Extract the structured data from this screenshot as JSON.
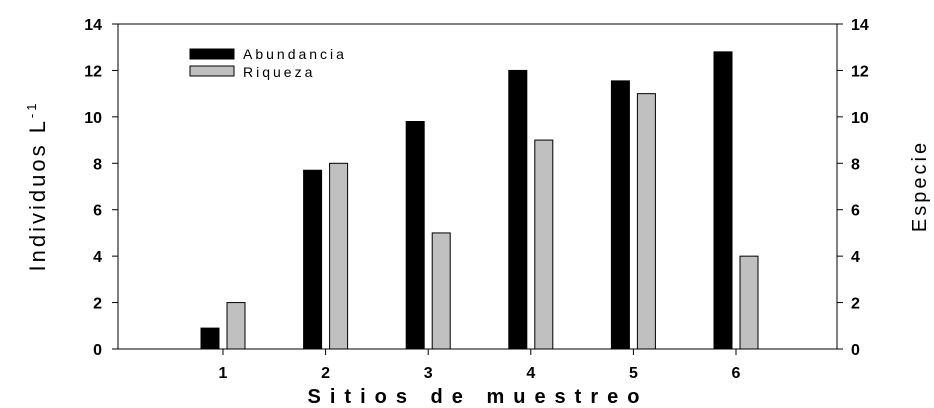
{
  "chart_data": {
    "type": "bar",
    "categories": [
      "1",
      "2",
      "3",
      "4",
      "5",
      "6"
    ],
    "series": [
      {
        "name": "Abundancia",
        "values": [
          0.9,
          7.7,
          9.8,
          12.0,
          11.55,
          12.8
        ],
        "color": "#000000"
      },
      {
        "name": "Riqueza",
        "values": [
          2,
          8,
          5,
          9,
          11,
          4
        ],
        "color": "#c0c0c0"
      }
    ],
    "xlabel": "Sitios de muestreo",
    "ylabel": "Individuos L",
    "ylabel_superscript": "-1",
    "y2label": "Especie",
    "ylim": [
      0,
      14
    ],
    "y2lim": [
      0,
      14
    ],
    "yticks": [
      "0",
      "2",
      "4",
      "6",
      "8",
      "10",
      "12",
      "14"
    ],
    "y2ticks": [
      "0",
      "2",
      "4",
      "6",
      "8",
      "10",
      "12",
      "14"
    ],
    "grid": false,
    "legend_position": "top-left"
  }
}
